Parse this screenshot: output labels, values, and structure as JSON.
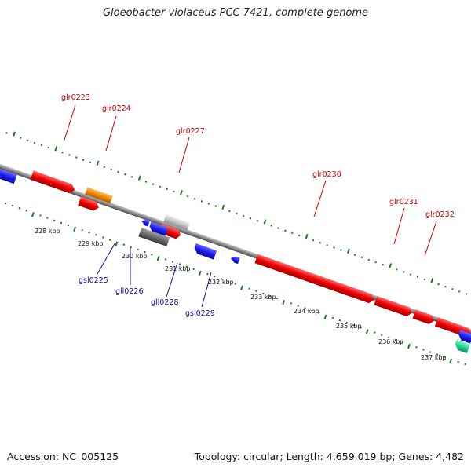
{
  "title": "Gloeobacter violaceus PCC 7421, complete genome",
  "footer": {
    "accession": "Accession: NC_005125",
    "summary": "Topology: circular; Length: 4,659,019 bp; Genes: 4,482"
  },
  "colors": {
    "forward_gene": "#ee0000",
    "reverse_gene": "#1a1aee",
    "orange_gene": "#f08a00",
    "light_gray_gene": "#c4c4c4",
    "dark_gray_gene": "#6a6a6a",
    "rna_gene": "#22d39a",
    "backbone": "#8a8a8a",
    "tick": "#1a7a1a"
  },
  "scale_labels": [
    "228 kbp",
    "229 kbp",
    "230 kbp",
    "231 kbp",
    "232 kbp",
    "233 kbp",
    "234 kbp",
    "235 kbp",
    "236 kbp",
    "237 kbp"
  ],
  "forward_labels": [
    "glr0223",
    "glr0224",
    "glr0227",
    "glr0230",
    "glr0231",
    "glr0232"
  ],
  "reverse_labels": [
    "gsl0225",
    "gll0226",
    "gll0228",
    "gsl0229"
  ]
}
